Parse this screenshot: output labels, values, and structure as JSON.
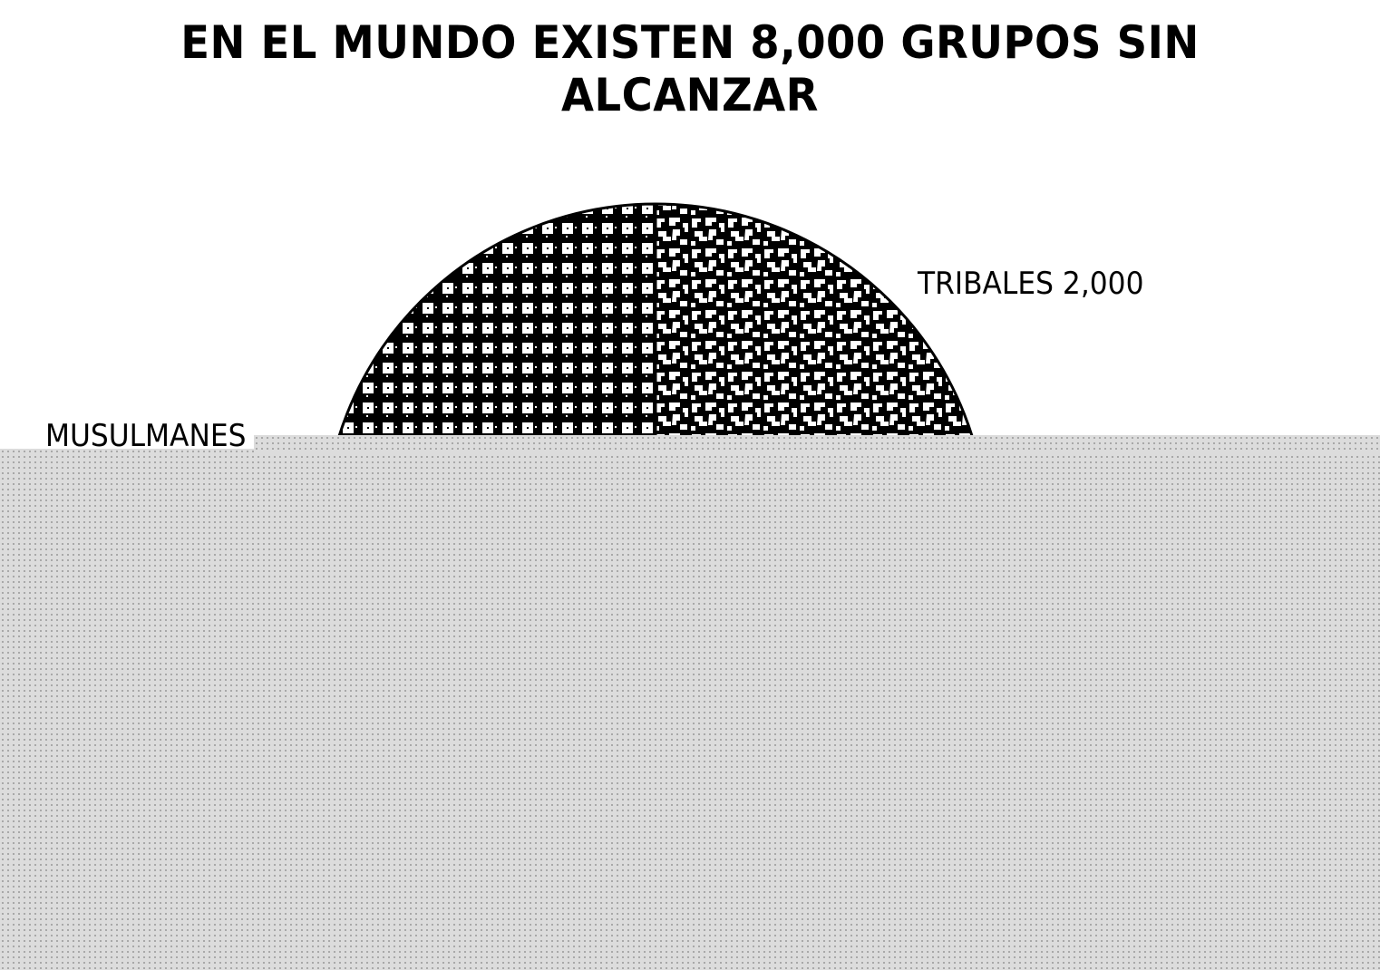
{
  "chart_data": {
    "type": "pie",
    "title": "EN EL MUNDO EXISTEN 8,000 GRUPOS SIN ALCANZAR",
    "total": 8000,
    "slices": [
      {
        "label": "TRIBALES",
        "value_text": "2,000",
        "value": 2000,
        "pattern": "mottled"
      },
      {
        "label": "MUSULMANES",
        "value_text": null,
        "value": null,
        "pattern": "checkered"
      }
    ],
    "colors": {
      "ink": "#000000",
      "paper": "#ffffff"
    }
  }
}
